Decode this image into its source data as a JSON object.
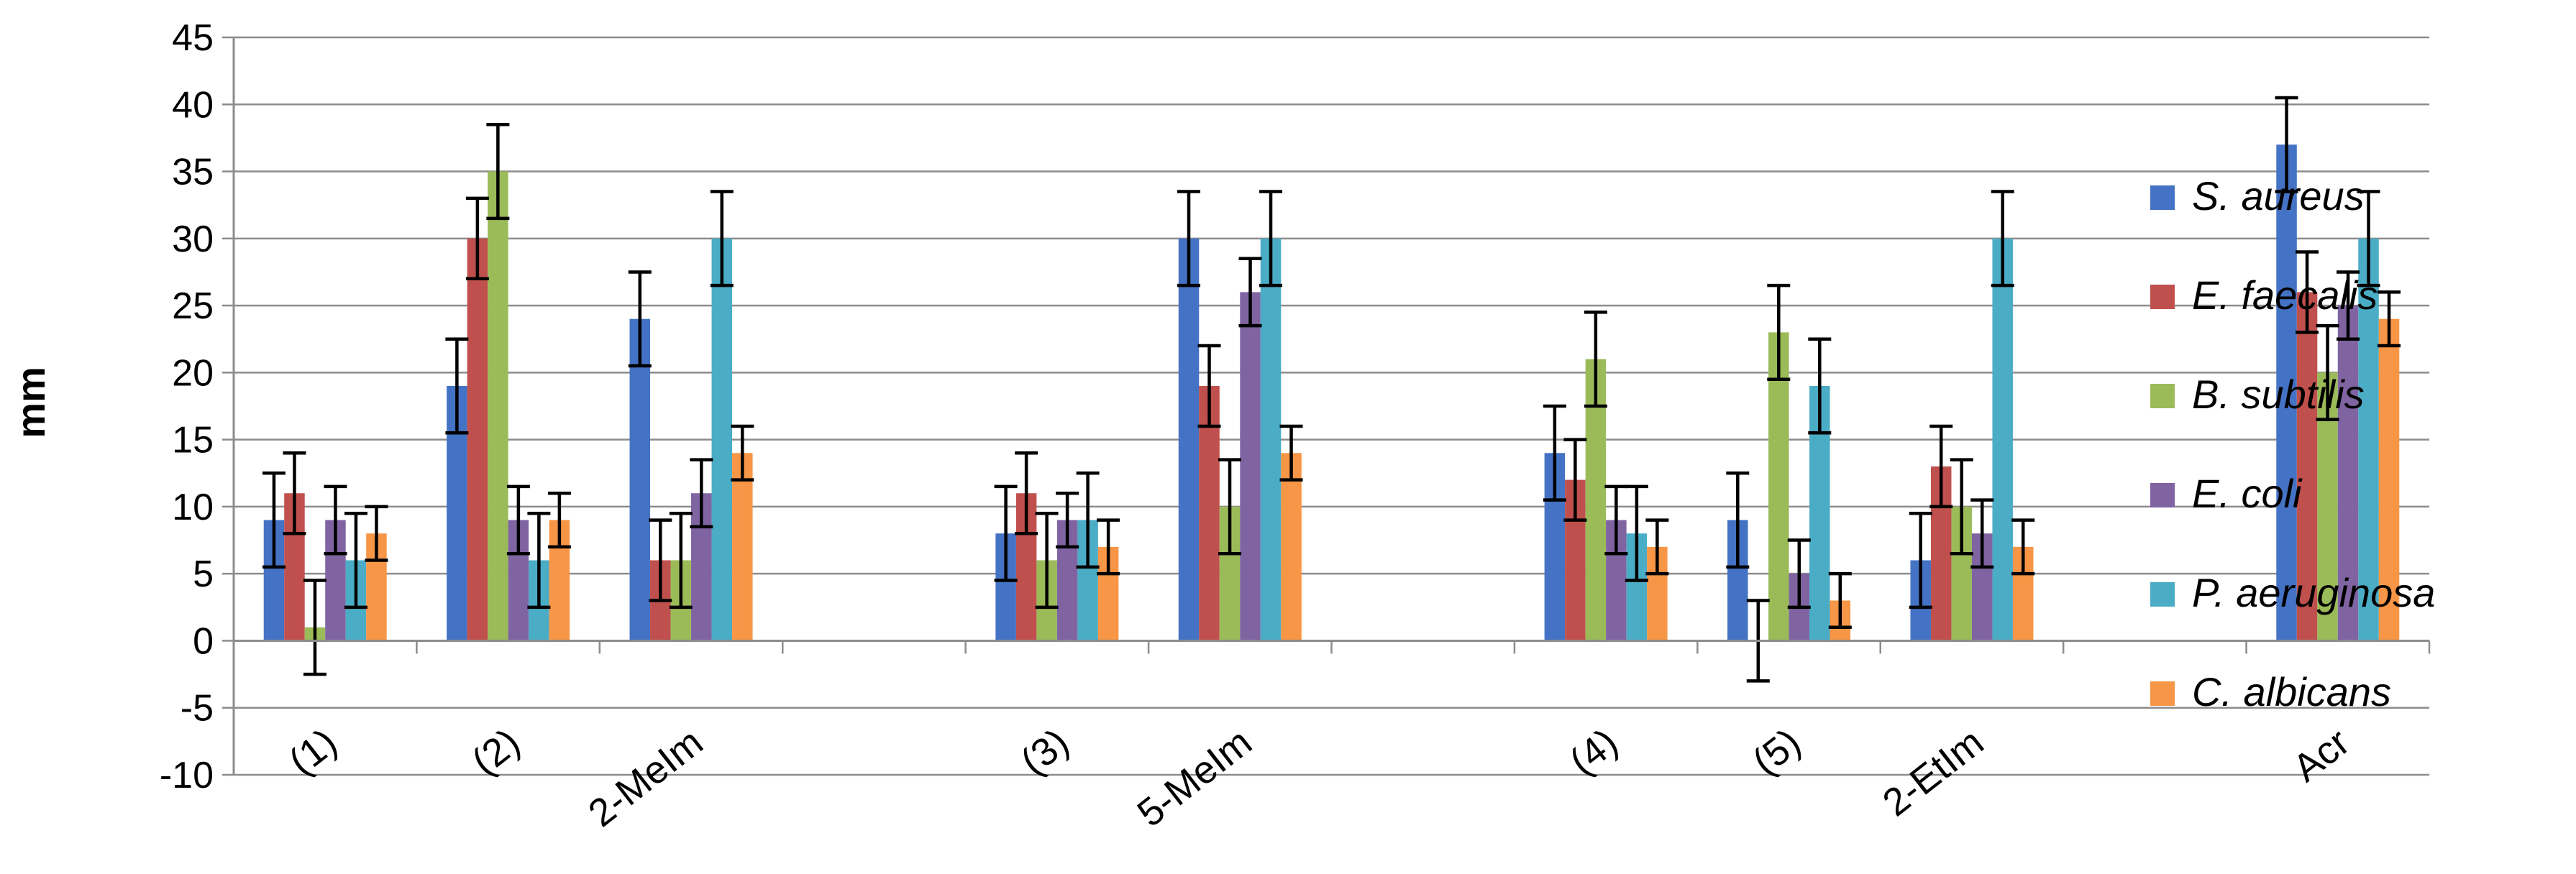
{
  "chart_data": {
    "type": "bar",
    "title": "",
    "xlabel": "",
    "ylabel": "mm",
    "ylim": [
      -10,
      45
    ],
    "yticks": [
      -10,
      -5,
      0,
      5,
      10,
      15,
      20,
      25,
      30,
      35,
      40,
      45
    ],
    "grid": true,
    "legend_position": "right",
    "categories": [
      "(1)",
      "(2)",
      "2-MeIm",
      "",
      "(3)",
      "5-MeIm",
      "",
      "(4)",
      "(5)",
      "2-EtIm",
      "",
      "Acr"
    ],
    "series": [
      {
        "name": "S. aureus",
        "color": "#4472C4",
        "values": [
          9,
          19,
          24,
          null,
          8,
          30,
          null,
          14,
          9,
          6,
          null,
          37
        ],
        "errors": [
          3.5,
          3.5,
          3.5,
          null,
          3.5,
          3.5,
          null,
          3.5,
          3.5,
          3.5,
          null,
          3.5
        ]
      },
      {
        "name": "E. faecalis",
        "color": "#C0504D",
        "values": [
          11,
          30,
          6,
          null,
          11,
          19,
          null,
          12,
          0,
          13,
          null,
          26
        ],
        "errors": [
          3,
          3,
          3,
          null,
          3,
          3,
          null,
          3,
          3,
          3,
          null,
          3
        ]
      },
      {
        "name": "B. subtilis",
        "color": "#9BBB59",
        "values": [
          1,
          35,
          6,
          null,
          6,
          10,
          null,
          21,
          23,
          10,
          null,
          20
        ],
        "errors": [
          3.5,
          3.5,
          3.5,
          null,
          3.5,
          3.5,
          null,
          3.5,
          3.5,
          3.5,
          null,
          3.5
        ]
      },
      {
        "name": "E. coli",
        "color": "#8064A2",
        "values": [
          9,
          9,
          11,
          null,
          9,
          26,
          null,
          9,
          5,
          8,
          null,
          25
        ],
        "errors": [
          2.5,
          2.5,
          2.5,
          null,
          2,
          2.5,
          null,
          2.5,
          2.5,
          2.5,
          null,
          2.5
        ]
      },
      {
        "name": "P. aeruginosa",
        "color": "#4BACC6",
        "values": [
          6,
          6,
          30,
          null,
          9,
          30,
          null,
          8,
          19,
          30,
          null,
          30
        ],
        "errors": [
          3.5,
          3.5,
          3.5,
          null,
          3.5,
          3.5,
          null,
          3.5,
          3.5,
          3.5,
          null,
          3.5
        ]
      },
      {
        "name": "C. albicans",
        "color": "#F79646",
        "values": [
          8,
          9,
          14,
          null,
          7,
          14,
          null,
          7,
          3,
          7,
          null,
          24
        ],
        "errors": [
          2,
          2,
          2,
          null,
          2,
          2,
          null,
          2,
          2,
          2,
          null,
          2
        ]
      }
    ]
  }
}
